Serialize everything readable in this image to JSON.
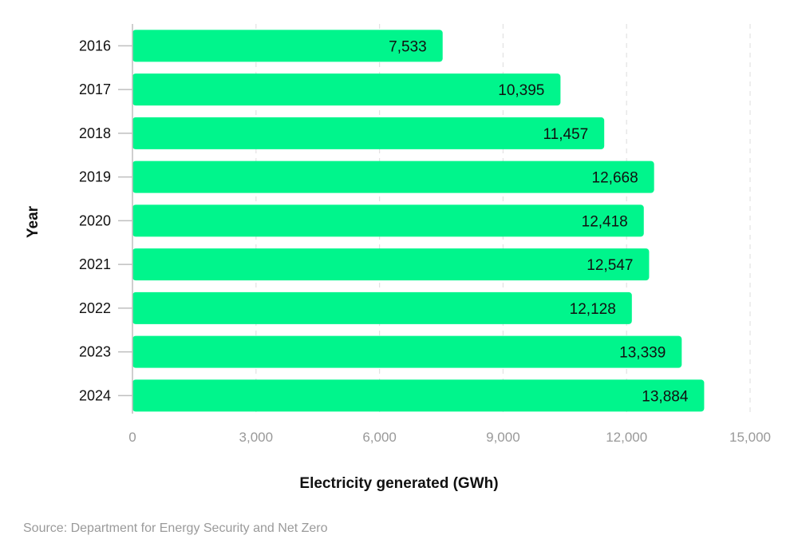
{
  "source": "Source: Department for Energy Security and Net Zero",
  "chart_data": {
    "type": "bar",
    "orientation": "horizontal",
    "categories": [
      "2016",
      "2017",
      "2018",
      "2019",
      "2020",
      "2021",
      "2022",
      "2023",
      "2024"
    ],
    "values": [
      7533,
      10395,
      11457,
      12668,
      12418,
      12547,
      12128,
      13339,
      13884
    ],
    "value_labels": [
      "7,533",
      "10,395",
      "11,457",
      "12,668",
      "12,418",
      "12,547",
      "12,128",
      "13,339",
      "13,884"
    ],
    "xlabel": "Electricity generated (GWh)",
    "ylabel": "Year",
    "xlim": [
      0,
      15000
    ],
    "x_ticks": [
      0,
      3000,
      6000,
      9000,
      12000,
      15000
    ],
    "x_tick_labels": [
      "0",
      "3,000",
      "6,000",
      "9,000",
      "12,000",
      "15,000"
    ],
    "grid": "vertical dashed",
    "legend": "none",
    "colors": {
      "bar": "#00f58c",
      "text": "#111111",
      "tick": "#999999",
      "grid": "#e2e2e2",
      "axis": "#bfbfbf"
    }
  }
}
